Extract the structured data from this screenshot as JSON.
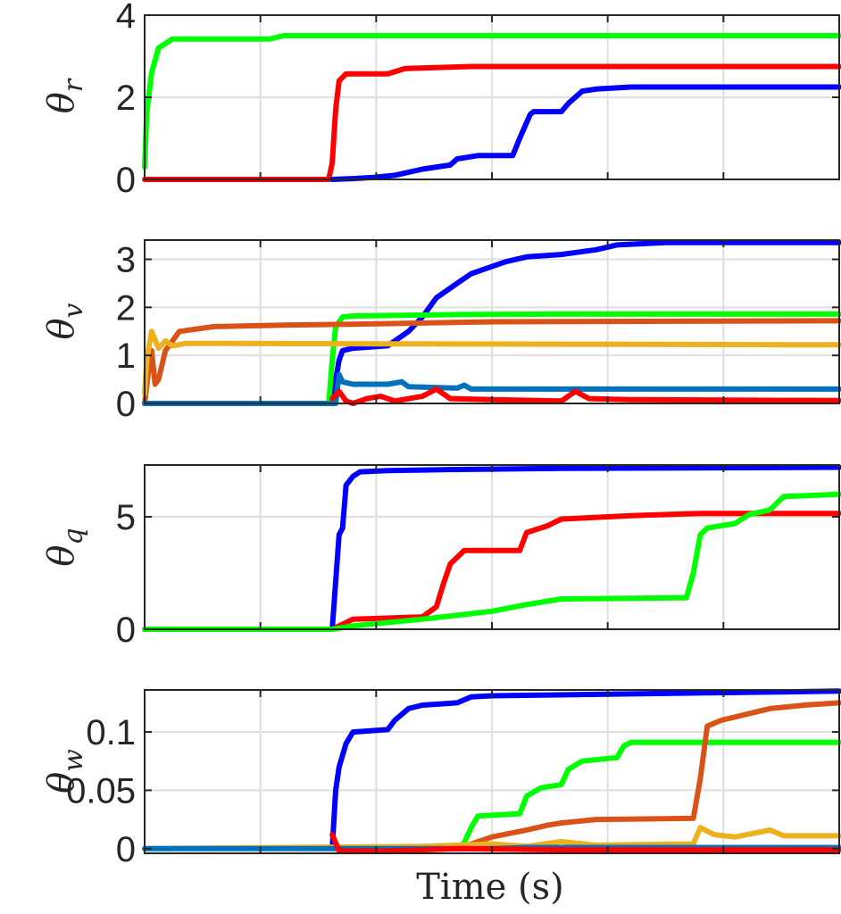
{
  "chart_data": [
    {
      "type": "line",
      "ylabel": {
        "symbol": "θ",
        "sub": "r"
      },
      "xlabel": "",
      "xlim": [
        0,
        1
      ],
      "ylim": [
        0,
        4
      ],
      "yticks": [
        0,
        2,
        4
      ],
      "grid": true,
      "series": [
        {
          "color": "#00ff00",
          "points": [
            [
              0,
              0.3
            ],
            [
              0.003,
              1.6
            ],
            [
              0.01,
              2.6
            ],
            [
              0.02,
              3.2
            ],
            [
              0.04,
              3.42
            ],
            [
              0.18,
              3.42
            ],
            [
              0.2,
              3.5
            ],
            [
              1,
              3.5
            ]
          ]
        },
        {
          "color": "#ff0000",
          "points": [
            [
              0,
              0
            ],
            [
              0.265,
              0
            ],
            [
              0.27,
              0.4
            ],
            [
              0.275,
              1.7
            ],
            [
              0.28,
              2.4
            ],
            [
              0.29,
              2.57
            ],
            [
              0.35,
              2.57
            ],
            [
              0.375,
              2.7
            ],
            [
              0.47,
              2.75
            ],
            [
              1,
              2.75
            ]
          ]
        },
        {
          "color": "#0000ff",
          "points": [
            [
              0.27,
              0
            ],
            [
              0.3,
              0.02
            ],
            [
              0.33,
              0.05
            ],
            [
              0.36,
              0.1
            ],
            [
              0.4,
              0.25
            ],
            [
              0.44,
              0.35
            ],
            [
              0.45,
              0.5
            ],
            [
              0.48,
              0.58
            ],
            [
              0.53,
              0.58
            ],
            [
              0.54,
              1.0
            ],
            [
              0.555,
              1.58
            ],
            [
              0.56,
              1.65
            ],
            [
              0.6,
              1.65
            ],
            [
              0.61,
              1.85
            ],
            [
              0.63,
              2.15
            ],
            [
              0.65,
              2.2
            ],
            [
              0.7,
              2.25
            ],
            [
              1,
              2.25
            ]
          ]
        }
      ]
    },
    {
      "type": "line",
      "ylabel": {
        "symbol": "θ",
        "sub": "v"
      },
      "xlabel": "",
      "xlim": [
        0,
        1
      ],
      "ylim": [
        0,
        3.4
      ],
      "yticks": [
        0,
        1,
        2,
        3
      ],
      "grid": true,
      "series": [
        {
          "color": "#0000ff",
          "points": [
            [
              0,
              0
            ],
            [
              0.27,
              0
            ],
            [
              0.275,
              0.5
            ],
            [
              0.28,
              0.9
            ],
            [
              0.285,
              1.1
            ],
            [
              0.3,
              1.15
            ],
            [
              0.35,
              1.2
            ],
            [
              0.38,
              1.5
            ],
            [
              0.4,
              1.8
            ],
            [
              0.42,
              2.2
            ],
            [
              0.45,
              2.5
            ],
            [
              0.47,
              2.7
            ],
            [
              0.5,
              2.85
            ],
            [
              0.52,
              2.95
            ],
            [
              0.55,
              3.05
            ],
            [
              0.6,
              3.1
            ],
            [
              0.65,
              3.2
            ],
            [
              0.68,
              3.3
            ],
            [
              0.75,
              3.35
            ],
            [
              1,
              3.35
            ]
          ]
        },
        {
          "color": "#00ff00",
          "points": [
            [
              0,
              0
            ],
            [
              0.265,
              0
            ],
            [
              0.27,
              0.9
            ],
            [
              0.275,
              1.6
            ],
            [
              0.285,
              1.8
            ],
            [
              0.3,
              1.82
            ],
            [
              0.45,
              1.85
            ],
            [
              0.6,
              1.86
            ],
            [
              1,
              1.86
            ]
          ]
        },
        {
          "color": "#d95319",
          "points": [
            [
              0,
              0
            ],
            [
              0.005,
              0.6
            ],
            [
              0.01,
              1.1
            ],
            [
              0.015,
              0.4
            ],
            [
              0.02,
              0.5
            ],
            [
              0.03,
              1.1
            ],
            [
              0.05,
              1.5
            ],
            [
              0.1,
              1.6
            ],
            [
              0.2,
              1.63
            ],
            [
              0.3,
              1.65
            ],
            [
              0.5,
              1.7
            ],
            [
              1,
              1.72
            ]
          ]
        },
        {
          "color": "#edb120",
          "points": [
            [
              0,
              0.2
            ],
            [
              0.003,
              0.9
            ],
            [
              0.01,
              1.5
            ],
            [
              0.02,
              1.15
            ],
            [
              0.03,
              1.3
            ],
            [
              0.04,
              1.2
            ],
            [
              0.06,
              1.25
            ],
            [
              1,
              1.22
            ]
          ]
        },
        {
          "color": "#0072bd",
          "points": [
            [
              0,
              0
            ],
            [
              0.275,
              0
            ],
            [
              0.28,
              0.6
            ],
            [
              0.285,
              0.45
            ],
            [
              0.3,
              0.4
            ],
            [
              0.35,
              0.4
            ],
            [
              0.37,
              0.45
            ],
            [
              0.38,
              0.35
            ],
            [
              0.45,
              0.32
            ],
            [
              0.46,
              0.38
            ],
            [
              0.47,
              0.3
            ],
            [
              1,
              0.3
            ]
          ]
        },
        {
          "color": "#ff0000",
          "points": [
            [
              0.27,
              0.1
            ],
            [
              0.28,
              0.25
            ],
            [
              0.29,
              0.05
            ],
            [
              0.3,
              0
            ],
            [
              0.32,
              0.1
            ],
            [
              0.34,
              0.15
            ],
            [
              0.36,
              0.05
            ],
            [
              0.4,
              0.15
            ],
            [
              0.42,
              0.3
            ],
            [
              0.44,
              0.1
            ],
            [
              0.5,
              0.08
            ],
            [
              0.6,
              0.05
            ],
            [
              0.62,
              0.25
            ],
            [
              0.64,
              0.1
            ],
            [
              0.7,
              0.08
            ],
            [
              1,
              0.06
            ]
          ]
        }
      ]
    },
    {
      "type": "line",
      "ylabel": {
        "symbol": "θ",
        "sub": "q"
      },
      "xlabel": "",
      "xlim": [
        0,
        1
      ],
      "ylim": [
        0,
        7.3
      ],
      "yticks": [
        0,
        5
      ],
      "grid": true,
      "series": [
        {
          "color": "#0000ff",
          "points": [
            [
              0,
              0
            ],
            [
              0.27,
              0
            ],
            [
              0.272,
              0.8
            ],
            [
              0.28,
              4.2
            ],
            [
              0.285,
              4.5
            ],
            [
              0.29,
              6.4
            ],
            [
              0.3,
              6.8
            ],
            [
              0.31,
              7.0
            ],
            [
              0.35,
              7.05
            ],
            [
              0.45,
              7.1
            ],
            [
              0.6,
              7.15
            ],
            [
              1,
              7.2
            ]
          ]
        },
        {
          "color": "#ff0000",
          "points": [
            [
              0,
              0
            ],
            [
              0.27,
              0
            ],
            [
              0.3,
              0.45
            ],
            [
              0.4,
              0.55
            ],
            [
              0.42,
              1.0
            ],
            [
              0.43,
              2.0
            ],
            [
              0.44,
              2.9
            ],
            [
              0.46,
              3.5
            ],
            [
              0.54,
              3.5
            ],
            [
              0.55,
              4.3
            ],
            [
              0.58,
              4.6
            ],
            [
              0.6,
              4.9
            ],
            [
              0.7,
              5.05
            ],
            [
              0.8,
              5.15
            ],
            [
              1,
              5.15
            ]
          ]
        },
        {
          "color": "#00ff00",
          "points": [
            [
              0,
              0
            ],
            [
              0.27,
              0
            ],
            [
              0.3,
              0.15
            ],
            [
              0.4,
              0.45
            ],
            [
              0.5,
              0.8
            ],
            [
              0.55,
              1.1
            ],
            [
              0.6,
              1.35
            ],
            [
              0.78,
              1.4
            ],
            [
              0.79,
              2.5
            ],
            [
              0.8,
              4.2
            ],
            [
              0.81,
              4.5
            ],
            [
              0.85,
              4.7
            ],
            [
              0.87,
              5.1
            ],
            [
              0.9,
              5.3
            ],
            [
              0.92,
              5.9
            ],
            [
              1,
              6.0
            ]
          ]
        }
      ]
    },
    {
      "type": "line",
      "ylabel": {
        "symbol": "θ",
        "sub": "w"
      },
      "xlabel": "Time (s)",
      "xlim": [
        0,
        1
      ],
      "ylim": [
        -0.004,
        0.136
      ],
      "yticks": [
        0,
        0.05,
        0.1
      ],
      "ytick_labels": [
        "0",
        "0.05",
        "0.1"
      ],
      "grid": true,
      "series": [
        {
          "color": "#0000ff",
          "points": [
            [
              0.27,
              0
            ],
            [
              0.275,
              0.05
            ],
            [
              0.28,
              0.07
            ],
            [
              0.29,
              0.09
            ],
            [
              0.3,
              0.1
            ],
            [
              0.35,
              0.102
            ],
            [
              0.36,
              0.11
            ],
            [
              0.38,
              0.12
            ],
            [
              0.4,
              0.123
            ],
            [
              0.45,
              0.125
            ],
            [
              0.47,
              0.13
            ],
            [
              0.5,
              0.131
            ],
            [
              1,
              0.135
            ]
          ]
        },
        {
          "color": "#00ff00",
          "points": [
            [
              0.45,
              0
            ],
            [
              0.46,
              0.005
            ],
            [
              0.47,
              0.018
            ],
            [
              0.48,
              0.028
            ],
            [
              0.54,
              0.03
            ],
            [
              0.55,
              0.045
            ],
            [
              0.57,
              0.052
            ],
            [
              0.6,
              0.055
            ],
            [
              0.61,
              0.068
            ],
            [
              0.63,
              0.075
            ],
            [
              0.68,
              0.078
            ],
            [
              0.69,
              0.088
            ],
            [
              0.7,
              0.091
            ],
            [
              1,
              0.091
            ]
          ]
        },
        {
          "color": "#d95319",
          "points": [
            [
              0.3,
              0
            ],
            [
              0.45,
              0
            ],
            [
              0.5,
              0.01
            ],
            [
              0.55,
              0.016
            ],
            [
              0.58,
              0.02
            ],
            [
              0.6,
              0.022
            ],
            [
              0.65,
              0.025
            ],
            [
              0.79,
              0.026
            ],
            [
              0.8,
              0.06
            ],
            [
              0.81,
              0.105
            ],
            [
              0.83,
              0.11
            ],
            [
              0.9,
              0.12
            ],
            [
              0.95,
              0.123
            ],
            [
              1,
              0.125
            ]
          ]
        },
        {
          "color": "#edb120",
          "points": [
            [
              0,
              0
            ],
            [
              0.4,
              0.002
            ],
            [
              0.5,
              0.004
            ],
            [
              0.55,
              0.002
            ],
            [
              0.6,
              0.006
            ],
            [
              0.65,
              0.003
            ],
            [
              0.79,
              0.004
            ],
            [
              0.8,
              0.018
            ],
            [
              0.82,
              0.012
            ],
            [
              0.85,
              0.01
            ],
            [
              0.9,
              0.016
            ],
            [
              0.92,
              0.011
            ],
            [
              1,
              0.011
            ]
          ]
        },
        {
          "color": "#0072bd",
          "points": [
            [
              0,
              0
            ],
            [
              0.5,
              0
            ],
            [
              0.55,
              0.001
            ],
            [
              0.6,
              0.001
            ],
            [
              1,
              0.001
            ]
          ]
        },
        {
          "color": "#ff0000",
          "points": [
            [
              0.27,
              0.012
            ],
            [
              0.28,
              -0.002
            ],
            [
              0.35,
              -0.002
            ],
            [
              0.45,
              0
            ],
            [
              0.6,
              -0.001
            ],
            [
              0.8,
              -0.001
            ],
            [
              1,
              -0.001
            ]
          ]
        }
      ]
    }
  ]
}
